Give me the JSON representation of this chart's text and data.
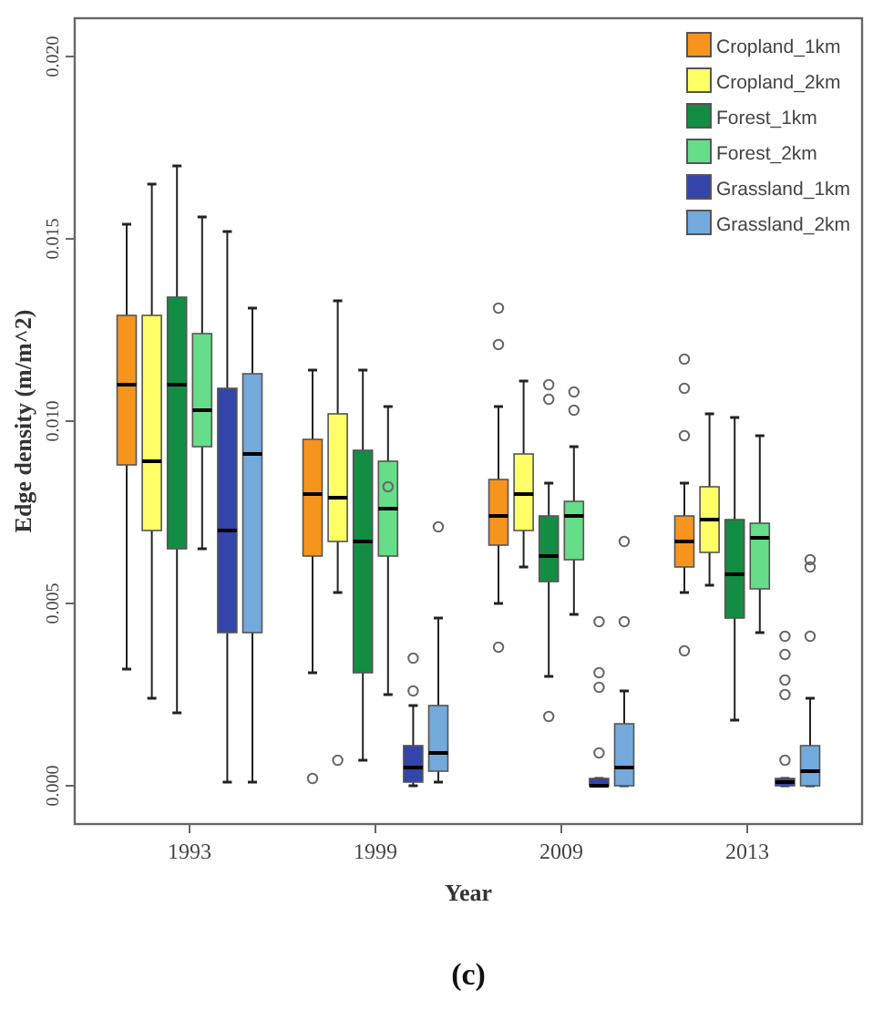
{
  "chart_data": {
    "type": "box",
    "xlabel": "Year",
    "ylabel": "Edge density (m/m^2)",
    "categories": [
      "1993",
      "1999",
      "2009",
      "2013"
    ],
    "ylim": [
      -0.00105,
      0.02105
    ],
    "yticks": [
      {
        "value": 0,
        "label": "0.000"
      },
      {
        "value": 0.005,
        "label": "0.005"
      },
      {
        "value": 0.01,
        "label": "0.010"
      },
      {
        "value": 0.015,
        "label": "0.015"
      },
      {
        "value": 0.02,
        "label": "0.020"
      }
    ],
    "legend": "top right",
    "grid": false,
    "annotations": [
      "(c)"
    ],
    "series": [
      {
        "name": "Cropland_1km",
        "color": "#f7941d",
        "boxes": [
          {
            "low": 0.0032,
            "q1": 0.0088,
            "median": 0.011,
            "q3": 0.0129,
            "high": 0.0154
          },
          {
            "low": 0.0031,
            "q1": 0.0063,
            "median": 0.008,
            "q3": 0.0095,
            "high": 0.0114,
            "outliers": [
              0.0002
            ]
          },
          {
            "low": 0.005,
            "q1": 0.0066,
            "median": 0.0074,
            "q3": 0.0084,
            "high": 0.0104,
            "outliers": [
              0.0131,
              0.0121,
              0.0038
            ]
          },
          {
            "low": 0.0053,
            "q1": 0.006,
            "median": 0.0067,
            "q3": 0.0074,
            "high": 0.0083,
            "outliers": [
              0.0117,
              0.0109,
              0.0096,
              0.0037
            ]
          }
        ]
      },
      {
        "name": "Cropland_2km",
        "color": "#ffff66",
        "boxes": [
          {
            "low": 0.0024,
            "q1": 0.007,
            "median": 0.0089,
            "q3": 0.0129,
            "high": 0.0165
          },
          {
            "low": 0.0053,
            "q1": 0.0067,
            "median": 0.0079,
            "q3": 0.0102,
            "high": 0.0133,
            "outliers": [
              0.0007
            ]
          },
          {
            "low": 0.006,
            "q1": 0.007,
            "median": 0.008,
            "q3": 0.0091,
            "high": 0.0111
          },
          {
            "low": 0.0055,
            "q1": 0.0064,
            "median": 0.0073,
            "q3": 0.0082,
            "high": 0.0102
          }
        ]
      },
      {
        "name": "Forest_1km",
        "color": "#138d43",
        "boxes": [
          {
            "low": 0.002,
            "q1": 0.0065,
            "median": 0.011,
            "q3": 0.0134,
            "high": 0.017
          },
          {
            "low": 0.0007,
            "q1": 0.0031,
            "median": 0.0067,
            "q3": 0.0092,
            "high": 0.0114
          },
          {
            "low": 0.003,
            "q1": 0.0056,
            "median": 0.0063,
            "q3": 0.0074,
            "high": 0.0083,
            "outliers": [
              0.011,
              0.0106,
              0.0019
            ]
          },
          {
            "low": 0.0018,
            "q1": 0.0046,
            "median": 0.0058,
            "q3": 0.0073,
            "high": 0.0101
          }
        ]
      },
      {
        "name": "Forest_2km",
        "color": "#66dd88",
        "boxes": [
          {
            "low": 0.0065,
            "q1": 0.0093,
            "median": 0.0103,
            "q3": 0.0124,
            "high": 0.0156
          },
          {
            "low": 0.0025,
            "q1": 0.0063,
            "median": 0.0076,
            "q3": 0.0089,
            "high": 0.0104,
            "outliers": [
              0.0082
            ]
          },
          {
            "low": 0.0047,
            "q1": 0.0062,
            "median": 0.0074,
            "q3": 0.0078,
            "high": 0.0093,
            "outliers": [
              0.0108,
              0.0103
            ]
          },
          {
            "low": 0.0042,
            "q1": 0.0054,
            "median": 0.0068,
            "q3": 0.0072,
            "high": 0.0096
          }
        ]
      },
      {
        "name": "Grassland_1km",
        "color": "#3344aa",
        "boxes": [
          {
            "low": 0.0001,
            "q1": 0.0042,
            "median": 0.007,
            "q3": 0.0109,
            "high": 0.0152
          },
          {
            "low": 0.0,
            "q1": 0.0001,
            "median": 0.0005,
            "q3": 0.0011,
            "high": 0.0022,
            "outliers": [
              0.0035,
              0.0026
            ]
          },
          {
            "low": 0.0,
            "q1": 0.0,
            "median": 0.0,
            "q3": 0.0002,
            "high": 0.0002,
            "outliers": [
              0.0045,
              0.0031,
              0.0027,
              0.0009
            ]
          },
          {
            "low": 0.0,
            "q1": 0.0,
            "median": 0.0001,
            "q3": 0.0002,
            "high": 0.0002,
            "outliers": [
              0.0041,
              0.0036,
              0.0029,
              0.0025,
              0.0007
            ]
          }
        ]
      },
      {
        "name": "Grassland_2km",
        "color": "#74a9dc",
        "boxes": [
          {
            "low": 0.0001,
            "q1": 0.0042,
            "median": 0.0091,
            "q3": 0.0113,
            "high": 0.0131
          },
          {
            "low": 0.0001,
            "q1": 0.0004,
            "median": 0.0009,
            "q3": 0.0022,
            "high": 0.0046,
            "outliers": [
              0.0071
            ]
          },
          {
            "low": 0.0,
            "q1": 0.0,
            "median": 0.0005,
            "q3": 0.0017,
            "high": 0.0026,
            "outliers": [
              0.0067,
              0.0045
            ]
          },
          {
            "low": 0.0,
            "q1": 0.0,
            "median": 0.0004,
            "q3": 0.0011,
            "high": 0.0024,
            "outliers": [
              0.0062,
              0.006,
              0.0041
            ]
          }
        ]
      }
    ]
  }
}
